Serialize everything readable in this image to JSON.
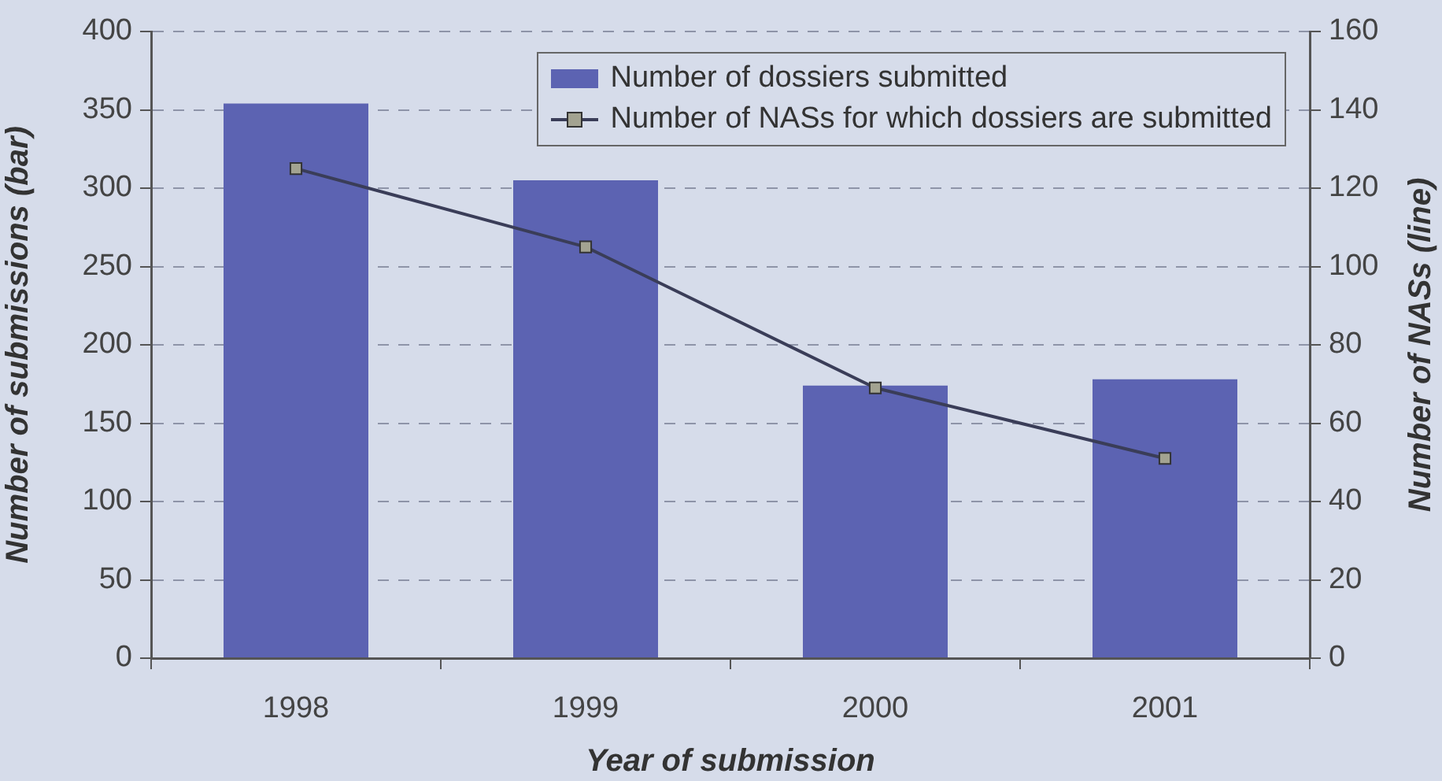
{
  "chart_data": {
    "type": "bar",
    "xlabel": "Year of submission",
    "ylabel": "Number of submissions (bar)",
    "y2label": "Number of NASs (line)",
    "categories": [
      "1998",
      "1999",
      "2000",
      "2001"
    ],
    "series": [
      {
        "name": "Number of dossiers submitted",
        "color": "#5c63b2",
        "values": [
          354,
          305,
          174,
          178
        ]
      },
      {
        "name": "Number of NASs for which dossiers are submitted",
        "type": "line",
        "axis": "y2",
        "color": "#3a3d58",
        "values": [
          125,
          105,
          69,
          51
        ]
      }
    ],
    "ylim": [
      0,
      400
    ],
    "yticks": [
      0,
      50,
      100,
      150,
      200,
      250,
      300,
      350,
      400
    ],
    "y2lim": [
      0,
      160
    ],
    "y2ticks": [
      0,
      20,
      40,
      60,
      80,
      100,
      120,
      140,
      160
    ],
    "grid": "y",
    "legend": "top right",
    "marker": "square"
  }
}
